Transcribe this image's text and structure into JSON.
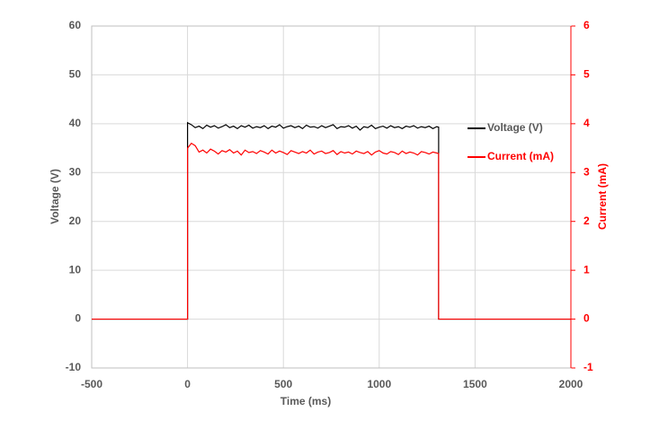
{
  "chart_data": {
    "type": "line",
    "xlabel": "Time (ms)",
    "ylabel": "Voltage (V)",
    "y2label": "Current (mA)",
    "xlim": [
      -500,
      2000
    ],
    "xticks": [
      -500,
      0,
      500,
      1000,
      1500,
      2000
    ],
    "ylim": [
      -10,
      60
    ],
    "yticks": [
      -10,
      0,
      10,
      20,
      30,
      40,
      50,
      60
    ],
    "y2lim": [
      -1,
      6
    ],
    "y2ticks": [
      -1,
      0,
      1,
      2,
      3,
      4,
      5,
      6
    ],
    "grid": true,
    "legend": "right",
    "x": [
      -500,
      0,
      0,
      20,
      40,
      60,
      80,
      100,
      120,
      140,
      160,
      180,
      200,
      220,
      240,
      260,
      280,
      300,
      320,
      340,
      360,
      380,
      400,
      420,
      440,
      460,
      480,
      500,
      520,
      540,
      560,
      580,
      600,
      620,
      640,
      660,
      680,
      700,
      720,
      740,
      760,
      780,
      800,
      820,
      840,
      860,
      880,
      900,
      920,
      940,
      960,
      980,
      1000,
      1020,
      1040,
      1060,
      1080,
      1100,
      1120,
      1140,
      1160,
      1180,
      1200,
      1220,
      1240,
      1260,
      1280,
      1300,
      1310,
      1310,
      2000
    ],
    "series": [
      {
        "name": "Voltage (V)",
        "color": "#000000",
        "values": [
          0,
          0,
          40.2,
          39.8,
          39.2,
          39.5,
          39.0,
          39.7,
          39.3,
          39.6,
          39.1,
          39.4,
          39.8,
          39.2,
          39.5,
          39.0,
          39.6,
          39.3,
          39.7,
          39.1,
          39.4,
          39.2,
          39.6,
          39.0,
          39.5,
          39.3,
          39.8,
          39.1,
          39.4,
          39.6,
          39.2,
          39.5,
          39.0,
          39.7,
          39.3,
          39.4,
          39.1,
          39.6,
          39.2,
          39.5,
          39.8,
          39.0,
          39.4,
          39.3,
          39.6,
          39.1,
          39.5,
          38.7,
          39.4,
          39.2,
          39.7,
          39.0,
          39.3,
          39.5,
          39.1,
          39.6,
          39.2,
          39.4,
          39.0,
          39.5,
          39.3,
          39.6,
          39.1,
          39.4,
          39.2,
          39.5,
          39.0,
          39.4,
          39.3,
          0,
          0
        ]
      },
      {
        "name": "Current (mA)",
        "color": "#ff0000",
        "axis": "y2",
        "values": [
          0,
          0,
          3.5,
          3.6,
          3.55,
          3.42,
          3.46,
          3.4,
          3.48,
          3.44,
          3.38,
          3.45,
          3.42,
          3.47,
          3.4,
          3.44,
          3.36,
          3.46,
          3.41,
          3.43,
          3.39,
          3.45,
          3.42,
          3.38,
          3.46,
          3.4,
          3.44,
          3.41,
          3.37,
          3.45,
          3.42,
          3.39,
          3.43,
          3.4,
          3.46,
          3.38,
          3.42,
          3.44,
          3.39,
          3.41,
          3.45,
          3.37,
          3.43,
          3.4,
          3.42,
          3.38,
          3.44,
          3.41,
          3.39,
          3.43,
          3.36,
          3.42,
          3.45,
          3.4,
          3.38,
          3.43,
          3.41,
          3.37,
          3.44,
          3.39,
          3.42,
          3.4,
          3.36,
          3.43,
          3.41,
          3.38,
          3.42,
          3.4,
          3.39,
          0,
          0
        ]
      }
    ]
  }
}
